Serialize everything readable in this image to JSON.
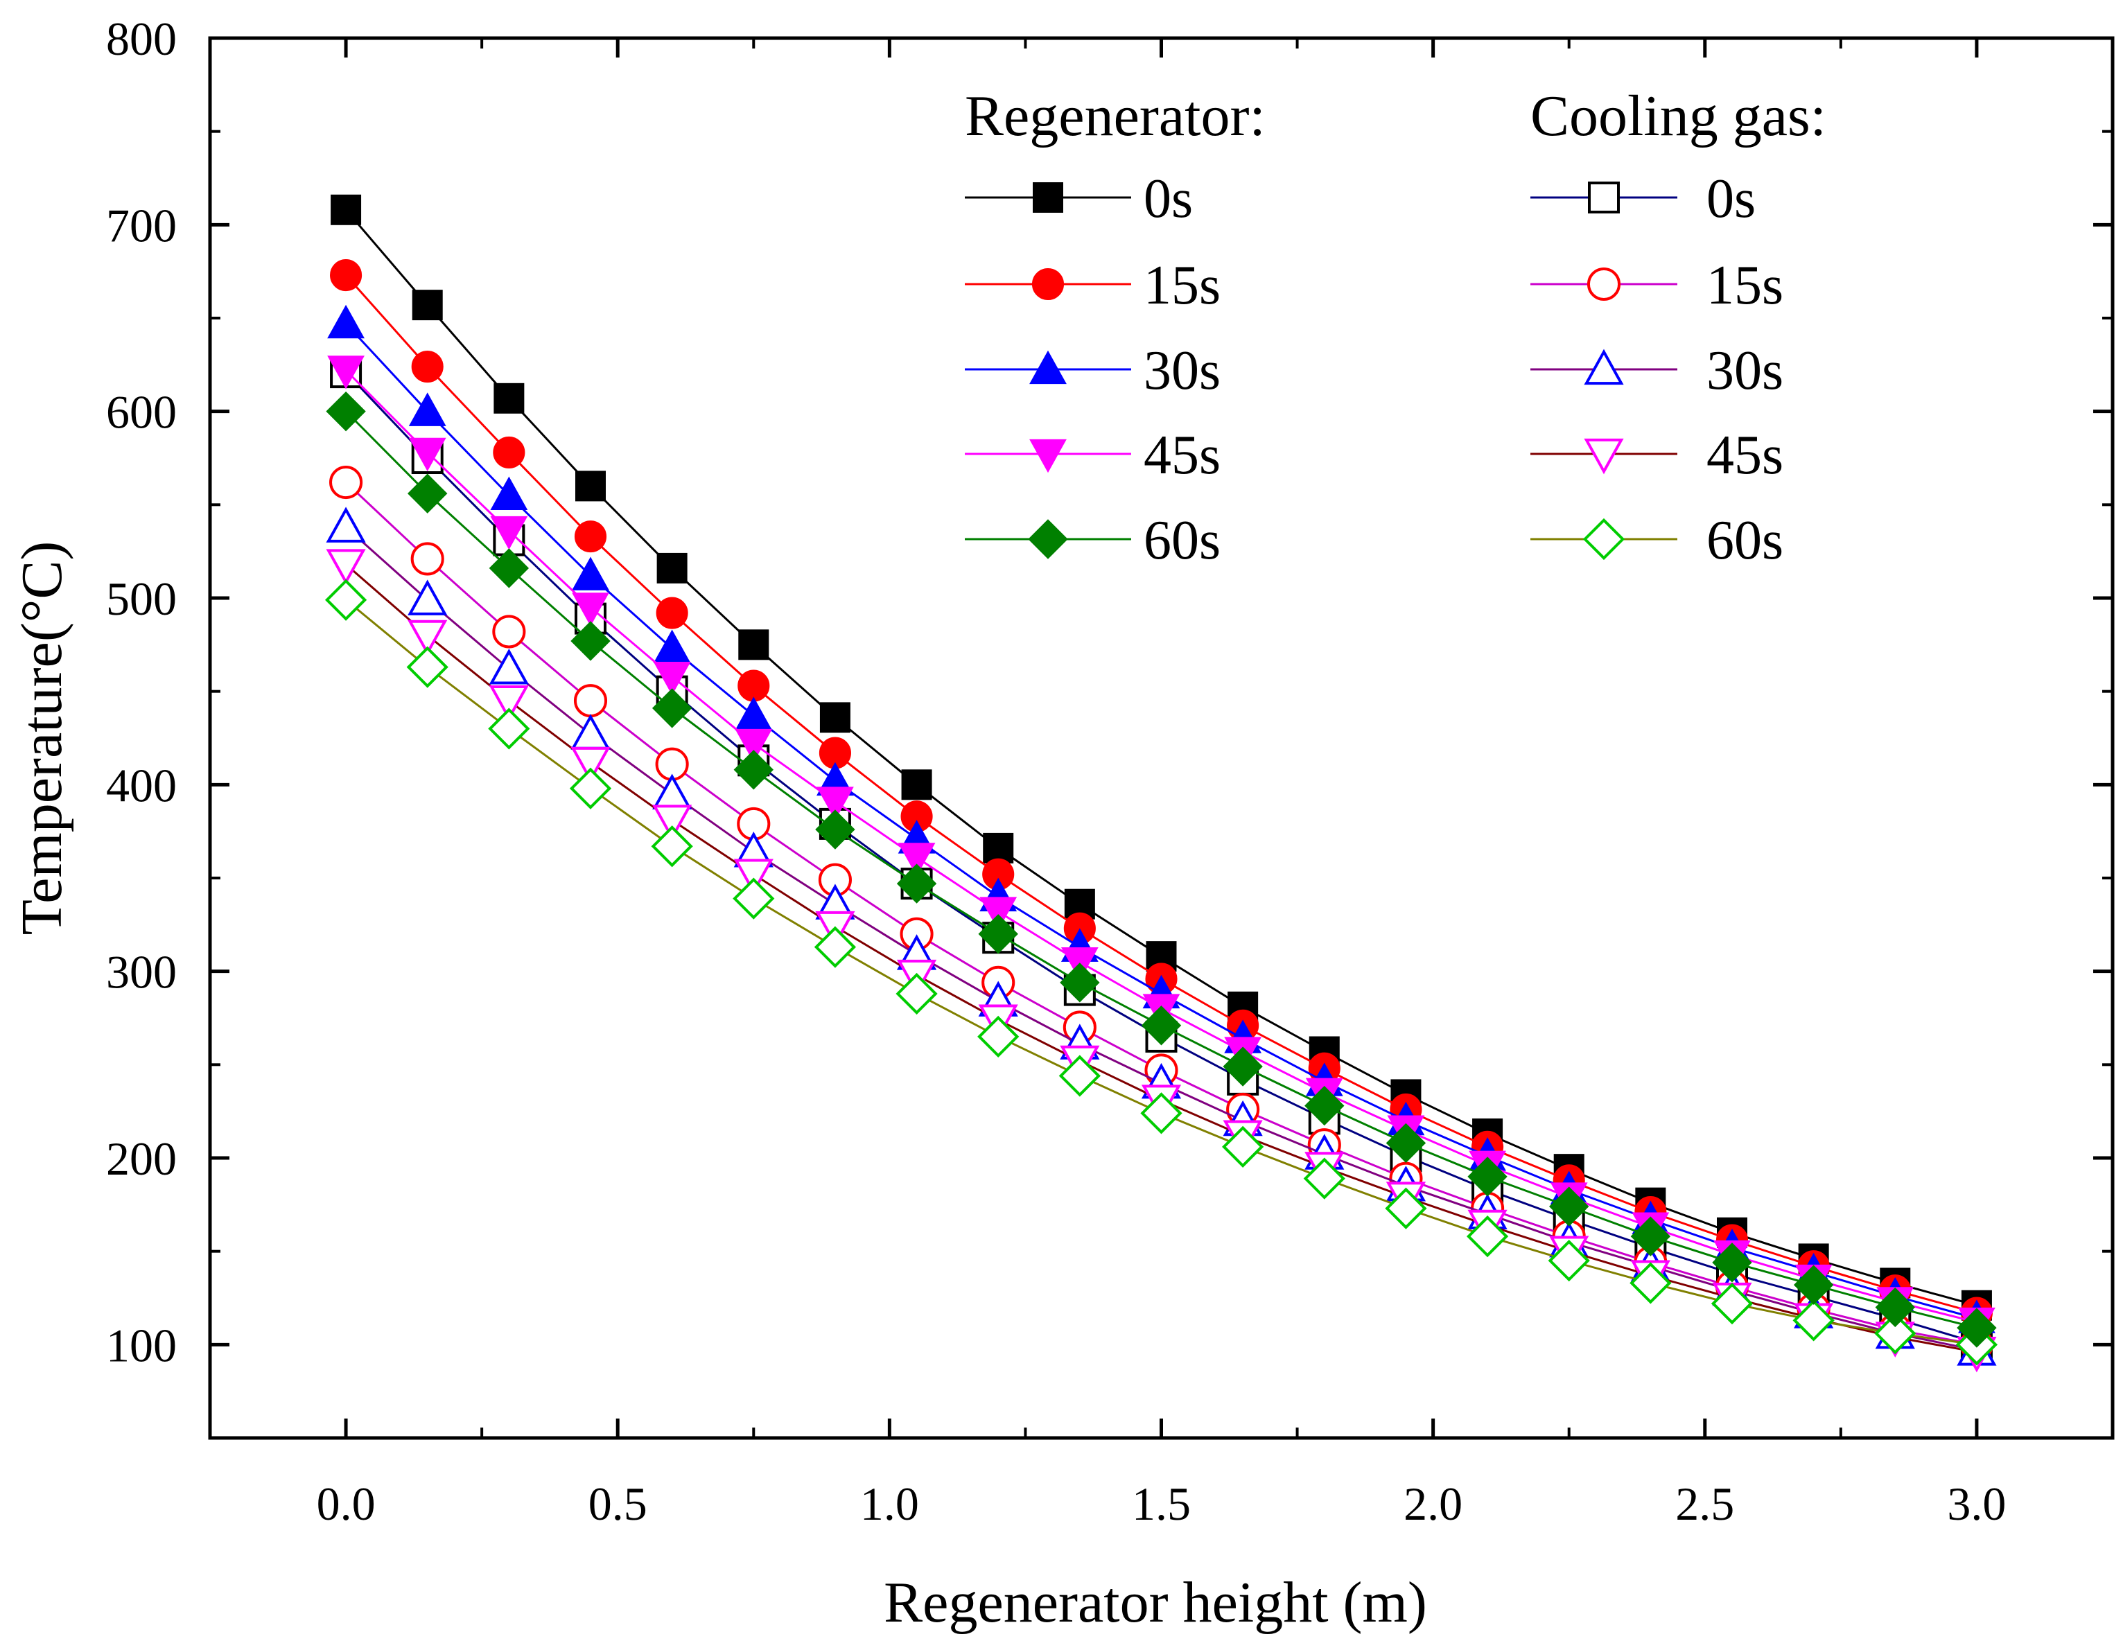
{
  "chart_data": {
    "type": "line",
    "title": "",
    "xlabel": "Regenerator height (m)",
    "ylabel": "Temperature(°C)",
    "xlim": [
      -0.25,
      3.25
    ],
    "ylim": [
      50,
      800
    ],
    "x_ticks": [
      0.0,
      0.5,
      1.0,
      1.5,
      2.0,
      2.5,
      3.0
    ],
    "x_tick_labels": [
      "0.0",
      "0.5",
      "1.0",
      "1.5",
      "2.0",
      "2.5",
      "3.0"
    ],
    "y_ticks": [
      100,
      200,
      300,
      400,
      500,
      600,
      700,
      800
    ],
    "y_tick_labels": [
      "100",
      "200",
      "300",
      "400",
      "500",
      "600",
      "700",
      "800"
    ],
    "grid": false,
    "legend_placement": "top-right",
    "x": [
      0.0,
      0.15,
      0.3,
      0.45,
      0.6,
      0.75,
      0.9,
      1.05,
      1.2,
      1.35,
      1.5,
      1.65,
      1.8,
      1.95,
      2.1,
      2.25,
      2.4,
      2.55,
      2.7,
      2.85,
      3.0
    ],
    "legend_groups": [
      {
        "title": "Regenerator:",
        "series_names": [
          "0s",
          "15s",
          "30s",
          "45s",
          "60s"
        ]
      },
      {
        "title": "Cooling gas:",
        "series_names": [
          "0s",
          "15s",
          "30s",
          "45s",
          "60s"
        ]
      }
    ],
    "series": [
      {
        "group": "Regenerator",
        "name": "0s",
        "line_color": "#000000",
        "marker": "square",
        "marker_fill": "#000000",
        "marker_stroke": "#000000",
        "values": [
          708,
          657,
          607,
          560,
          516,
          475,
          436,
          400,
          366,
          336,
          308,
          281,
          257,
          234,
          213,
          194,
          176,
          160,
          146,
          133,
          121
        ]
      },
      {
        "group": "Regenerator",
        "name": "15s",
        "line_color": "#ff0000",
        "marker": "circle",
        "marker_fill": "#ff0000",
        "marker_stroke": "#ff0000",
        "values": [
          673,
          624,
          578,
          533,
          492,
          453,
          417,
          383,
          352,
          323,
          296,
          271,
          248,
          226,
          206,
          188,
          171,
          156,
          142,
          129,
          117
        ]
      },
      {
        "group": "Regenerator",
        "name": "30s",
        "line_color": "#0000ff",
        "marker": "triangle-up",
        "marker_fill": "#0000ff",
        "marker_stroke": "#0000ff",
        "values": [
          647,
          600,
          555,
          512,
          473,
          437,
          402,
          371,
          340,
          313,
          288,
          264,
          241,
          220,
          201,
          183,
          167,
          152,
          139,
          126,
          114
        ]
      },
      {
        "group": "Regenerator",
        "name": "45s",
        "line_color": "#ff00ff",
        "marker": "triangle-down",
        "marker_fill": "#ff00ff",
        "marker_stroke": "#ff00ff",
        "values": [
          622,
          578,
          536,
          495,
          458,
          422,
          391,
          361,
          332,
          305,
          280,
          257,
          235,
          215,
          196,
          179,
          163,
          148,
          135,
          123,
          112
        ]
      },
      {
        "group": "Regenerator",
        "name": "60s",
        "line_color": "#008000",
        "marker": "diamond",
        "marker_fill": "#008000",
        "marker_stroke": "#008000",
        "values": [
          600,
          556,
          516,
          477,
          441,
          408,
          376,
          347,
          320,
          294,
          271,
          249,
          228,
          208,
          190,
          174,
          158,
          144,
          132,
          120,
          109
        ]
      },
      {
        "group": "Cooling gas",
        "name": "0s",
        "line_color": "#000080",
        "marker": "square",
        "marker_fill": "#ffffff",
        "marker_stroke": "#000000",
        "values": [
          621,
          575,
          531,
          489,
          450,
          413,
          379,
          347,
          318,
          290,
          265,
          242,
          221,
          201,
          183,
          167,
          152,
          138,
          126,
          114,
          101
        ]
      },
      {
        "group": "Cooling gas",
        "name": "15s",
        "line_color": "#cc00cc",
        "marker": "circle",
        "marker_fill": "#ffffff",
        "marker_stroke": "#ff0000",
        "values": [
          562,
          521,
          482,
          445,
          411,
          379,
          349,
          320,
          294,
          270,
          247,
          226,
          207,
          189,
          173,
          158,
          144,
          131,
          119,
          108,
          100
        ]
      },
      {
        "group": "Cooling gas",
        "name": "30s",
        "line_color": "#800080",
        "marker": "triangle-up",
        "marker_fill": "#ffffff",
        "marker_stroke": "#0000ff",
        "values": [
          538,
          499,
          462,
          427,
          395,
          364,
          336,
          309,
          284,
          261,
          240,
          220,
          202,
          185,
          170,
          155,
          142,
          129,
          117,
          106,
          97
        ]
      },
      {
        "group": "Cooling gas",
        "name": "45s",
        "line_color": "#800000",
        "marker": "triangle-down",
        "marker_fill": "#ffffff",
        "marker_stroke": "#ff00ff",
        "values": [
          518,
          480,
          445,
          412,
          381,
          352,
          324,
          298,
          274,
          252,
          231,
          212,
          195,
          179,
          164,
          150,
          137,
          125,
          114,
          104,
          96
        ]
      },
      {
        "group": "Cooling gas",
        "name": "60s",
        "line_color": "#808000",
        "marker": "diamond",
        "marker_fill": "#ffffff",
        "marker_stroke": "#00cc00",
        "values": [
          499,
          463,
          430,
          398,
          367,
          339,
          313,
          288,
          265,
          244,
          224,
          206,
          189,
          173,
          158,
          145,
          133,
          122,
          113,
          106,
          100
        ]
      }
    ]
  }
}
